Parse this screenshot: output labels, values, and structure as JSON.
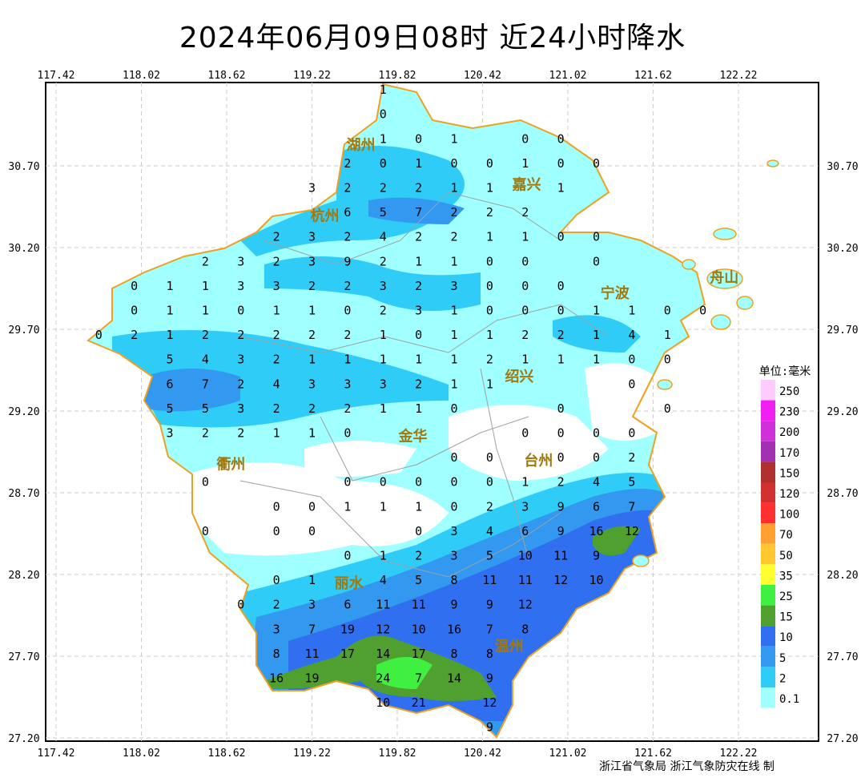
{
  "title": "2024年06月09日08时  近24小时降水",
  "credit": "浙江省气象局   浙江气象防灾在线 制",
  "axes": {
    "lon_ticks": [
      "117.42",
      "118.02",
      "118.62",
      "119.22",
      "119.82",
      "120.42",
      "121.02",
      "121.62",
      "122.22"
    ],
    "lat_ticks": [
      "30.70",
      "30.20",
      "29.70",
      "29.20",
      "28.70",
      "28.20",
      "27.70",
      "27.20"
    ]
  },
  "legend": {
    "unit": "单位:毫米",
    "items": [
      {
        "label": "250",
        "color": "#ffccff"
      },
      {
        "label": "230",
        "color": "#f020f0"
      },
      {
        "label": "200",
        "color": "#d030d8"
      },
      {
        "label": "170",
        "color": "#a030b0"
      },
      {
        "label": "150",
        "color": "#b03030"
      },
      {
        "label": "120",
        "color": "#d03030"
      },
      {
        "label": "100",
        "color": "#ff3030"
      },
      {
        "label": "70",
        "color": "#ffa030"
      },
      {
        "label": "50",
        "color": "#ffc830"
      },
      {
        "label": "35",
        "color": "#ffff30"
      },
      {
        "label": "25",
        "color": "#40f040"
      },
      {
        "label": "15",
        "color": "#50a030"
      },
      {
        "label": "10",
        "color": "#3070f0"
      },
      {
        "label": "5",
        "color": "#3399f0"
      },
      {
        "label": "2",
        "color": "#30ccf8"
      },
      {
        "label": "0.1",
        "color": "#a0ffff"
      }
    ]
  },
  "cities": [
    {
      "name": "湖州",
      "lon": 119.84,
      "lat": 30.7
    },
    {
      "name": "嘉兴",
      "lon": 120.73,
      "lat": 30.59
    },
    {
      "name": "杭州",
      "lon": 119.44,
      "lat": 29.84
    },
    {
      "name": "绍兴",
      "lon": 120.6,
      "lat": 29.68
    },
    {
      "name": "宁波",
      "lon": 121.43,
      "lat": 29.68
    },
    {
      "name": "舟山",
      "lon": 122.12,
      "lat": 30.02
    },
    {
      "name": "金华",
      "lon": 119.93,
      "lat": 29.05
    },
    {
      "name": "衢州",
      "lon": 118.65,
      "lat": 28.88
    },
    {
      "name": "台州",
      "lon": 121.09,
      "lat": 28.73
    },
    {
      "name": "丽水",
      "lon": 119.48,
      "lat": 28.15
    },
    {
      "name": "温州",
      "lon": 120.41,
      "lat": 27.86
    }
  ],
  "colors": {
    "coast": "#f0a020",
    "border": "#a0a0a0",
    "city_label": "#a07810"
  },
  "stations": {
    "lon0": 117.72,
    "dlon": 0.25,
    "lat0": 31.17,
    "dlat": -0.15,
    "rows": [
      [
        null,
        null,
        null,
        null,
        null,
        null,
        null,
        null,
        1,
        null,
        null,
        null,
        null,
        null,
        null,
        null,
        null,
        null
      ],
      [
        null,
        null,
        null,
        null,
        null,
        null,
        null,
        null,
        0,
        null,
        null,
        null,
        null,
        null,
        null,
        null,
        null,
        null
      ],
      [
        null,
        null,
        null,
        null,
        null,
        null,
        null,
        null,
        1,
        0,
        1,
        null,
        0,
        0,
        null,
        null,
        null,
        null
      ],
      [
        null,
        null,
        null,
        null,
        null,
        null,
        null,
        2,
        0,
        1,
        0,
        0,
        1,
        0,
        0,
        null,
        null,
        null
      ],
      [
        null,
        null,
        null,
        null,
        null,
        null,
        3,
        2,
        2,
        2,
        1,
        1,
        null,
        1,
        null,
        null,
        null,
        null
      ],
      [
        null,
        null,
        null,
        null,
        null,
        null,
        null,
        6,
        5,
        7,
        2,
        2,
        2,
        null,
        null,
        null,
        null,
        null
      ],
      [
        null,
        null,
        null,
        null,
        null,
        2,
        3,
        2,
        4,
        2,
        2,
        1,
        1,
        0,
        0,
        null,
        null,
        null
      ],
      [
        null,
        null,
        null,
        2,
        3,
        2,
        3,
        9,
        2,
        1,
        1,
        0,
        0,
        null,
        0,
        null,
        null,
        null
      ],
      [
        null,
        0,
        1,
        1,
        3,
        3,
        2,
        2,
        3,
        2,
        3,
        0,
        0,
        0,
        null,
        null,
        null,
        null
      ],
      [
        null,
        0,
        1,
        1,
        0,
        1,
        1,
        0,
        2,
        3,
        1,
        0,
        0,
        0,
        1,
        1,
        0,
        0
      ],
      [
        0,
        2,
        1,
        2,
        2,
        2,
        2,
        2,
        1,
        0,
        1,
        1,
        2,
        2,
        1,
        4,
        1,
        null
      ],
      [
        null,
        null,
        5,
        4,
        3,
        2,
        1,
        1,
        1,
        1,
        1,
        2,
        1,
        1,
        1,
        0,
        0,
        null
      ],
      [
        null,
        null,
        6,
        7,
        2,
        4,
        3,
        3,
        3,
        2,
        1,
        1,
        null,
        null,
        null,
        0,
        null,
        null
      ],
      [
        null,
        null,
        5,
        5,
        3,
        2,
        2,
        2,
        1,
        1,
        0,
        null,
        null,
        0,
        null,
        null,
        0,
        null
      ],
      [
        null,
        null,
        3,
        2,
        2,
        1,
        1,
        0,
        null,
        null,
        null,
        null,
        0,
        0,
        0,
        0,
        null,
        null
      ],
      [
        null,
        null,
        null,
        null,
        null,
        null,
        null,
        null,
        null,
        null,
        0,
        0,
        null,
        0,
        0,
        2,
        null,
        null
      ],
      [
        null,
        null,
        null,
        0,
        null,
        null,
        null,
        0,
        0,
        0,
        0,
        0,
        1,
        2,
        4,
        5,
        null,
        null
      ],
      [
        null,
        null,
        null,
        null,
        null,
        0,
        0,
        1,
        1,
        1,
        0,
        2,
        3,
        9,
        6,
        7,
        null,
        null
      ],
      [
        null,
        null,
        null,
        0,
        null,
        0,
        0,
        null,
        null,
        0,
        3,
        4,
        6,
        9,
        16,
        12,
        null,
        null
      ],
      [
        null,
        null,
        null,
        null,
        null,
        null,
        null,
        0,
        1,
        2,
        3,
        5,
        10,
        11,
        9,
        null,
        null,
        null
      ],
      [
        null,
        null,
        null,
        null,
        null,
        0,
        1,
        null,
        4,
        5,
        8,
        11,
        11,
        12,
        10,
        null,
        null,
        null
      ],
      [
        null,
        null,
        null,
        null,
        0,
        2,
        3,
        6,
        11,
        11,
        9,
        9,
        12,
        null,
        null,
        null,
        null,
        null
      ],
      [
        null,
        null,
        null,
        null,
        null,
        3,
        7,
        19,
        12,
        10,
        16,
        7,
        8,
        null,
        null,
        null,
        null,
        null
      ],
      [
        null,
        null,
        null,
        null,
        null,
        8,
        11,
        17,
        14,
        17,
        8,
        8,
        null,
        null,
        null,
        null,
        null,
        null
      ],
      [
        null,
        null,
        null,
        null,
        null,
        16,
        19,
        null,
        24,
        7,
        14,
        9,
        null,
        null,
        null,
        null,
        null,
        null
      ],
      [
        null,
        null,
        null,
        null,
        null,
        null,
        null,
        null,
        10,
        21,
        null,
        12,
        null,
        null,
        null,
        null,
        null,
        null
      ],
      [
        null,
        null,
        null,
        null,
        null,
        null,
        null,
        null,
        null,
        null,
        null,
        9,
        null,
        null,
        null,
        null,
        null,
        null
      ]
    ]
  }
}
